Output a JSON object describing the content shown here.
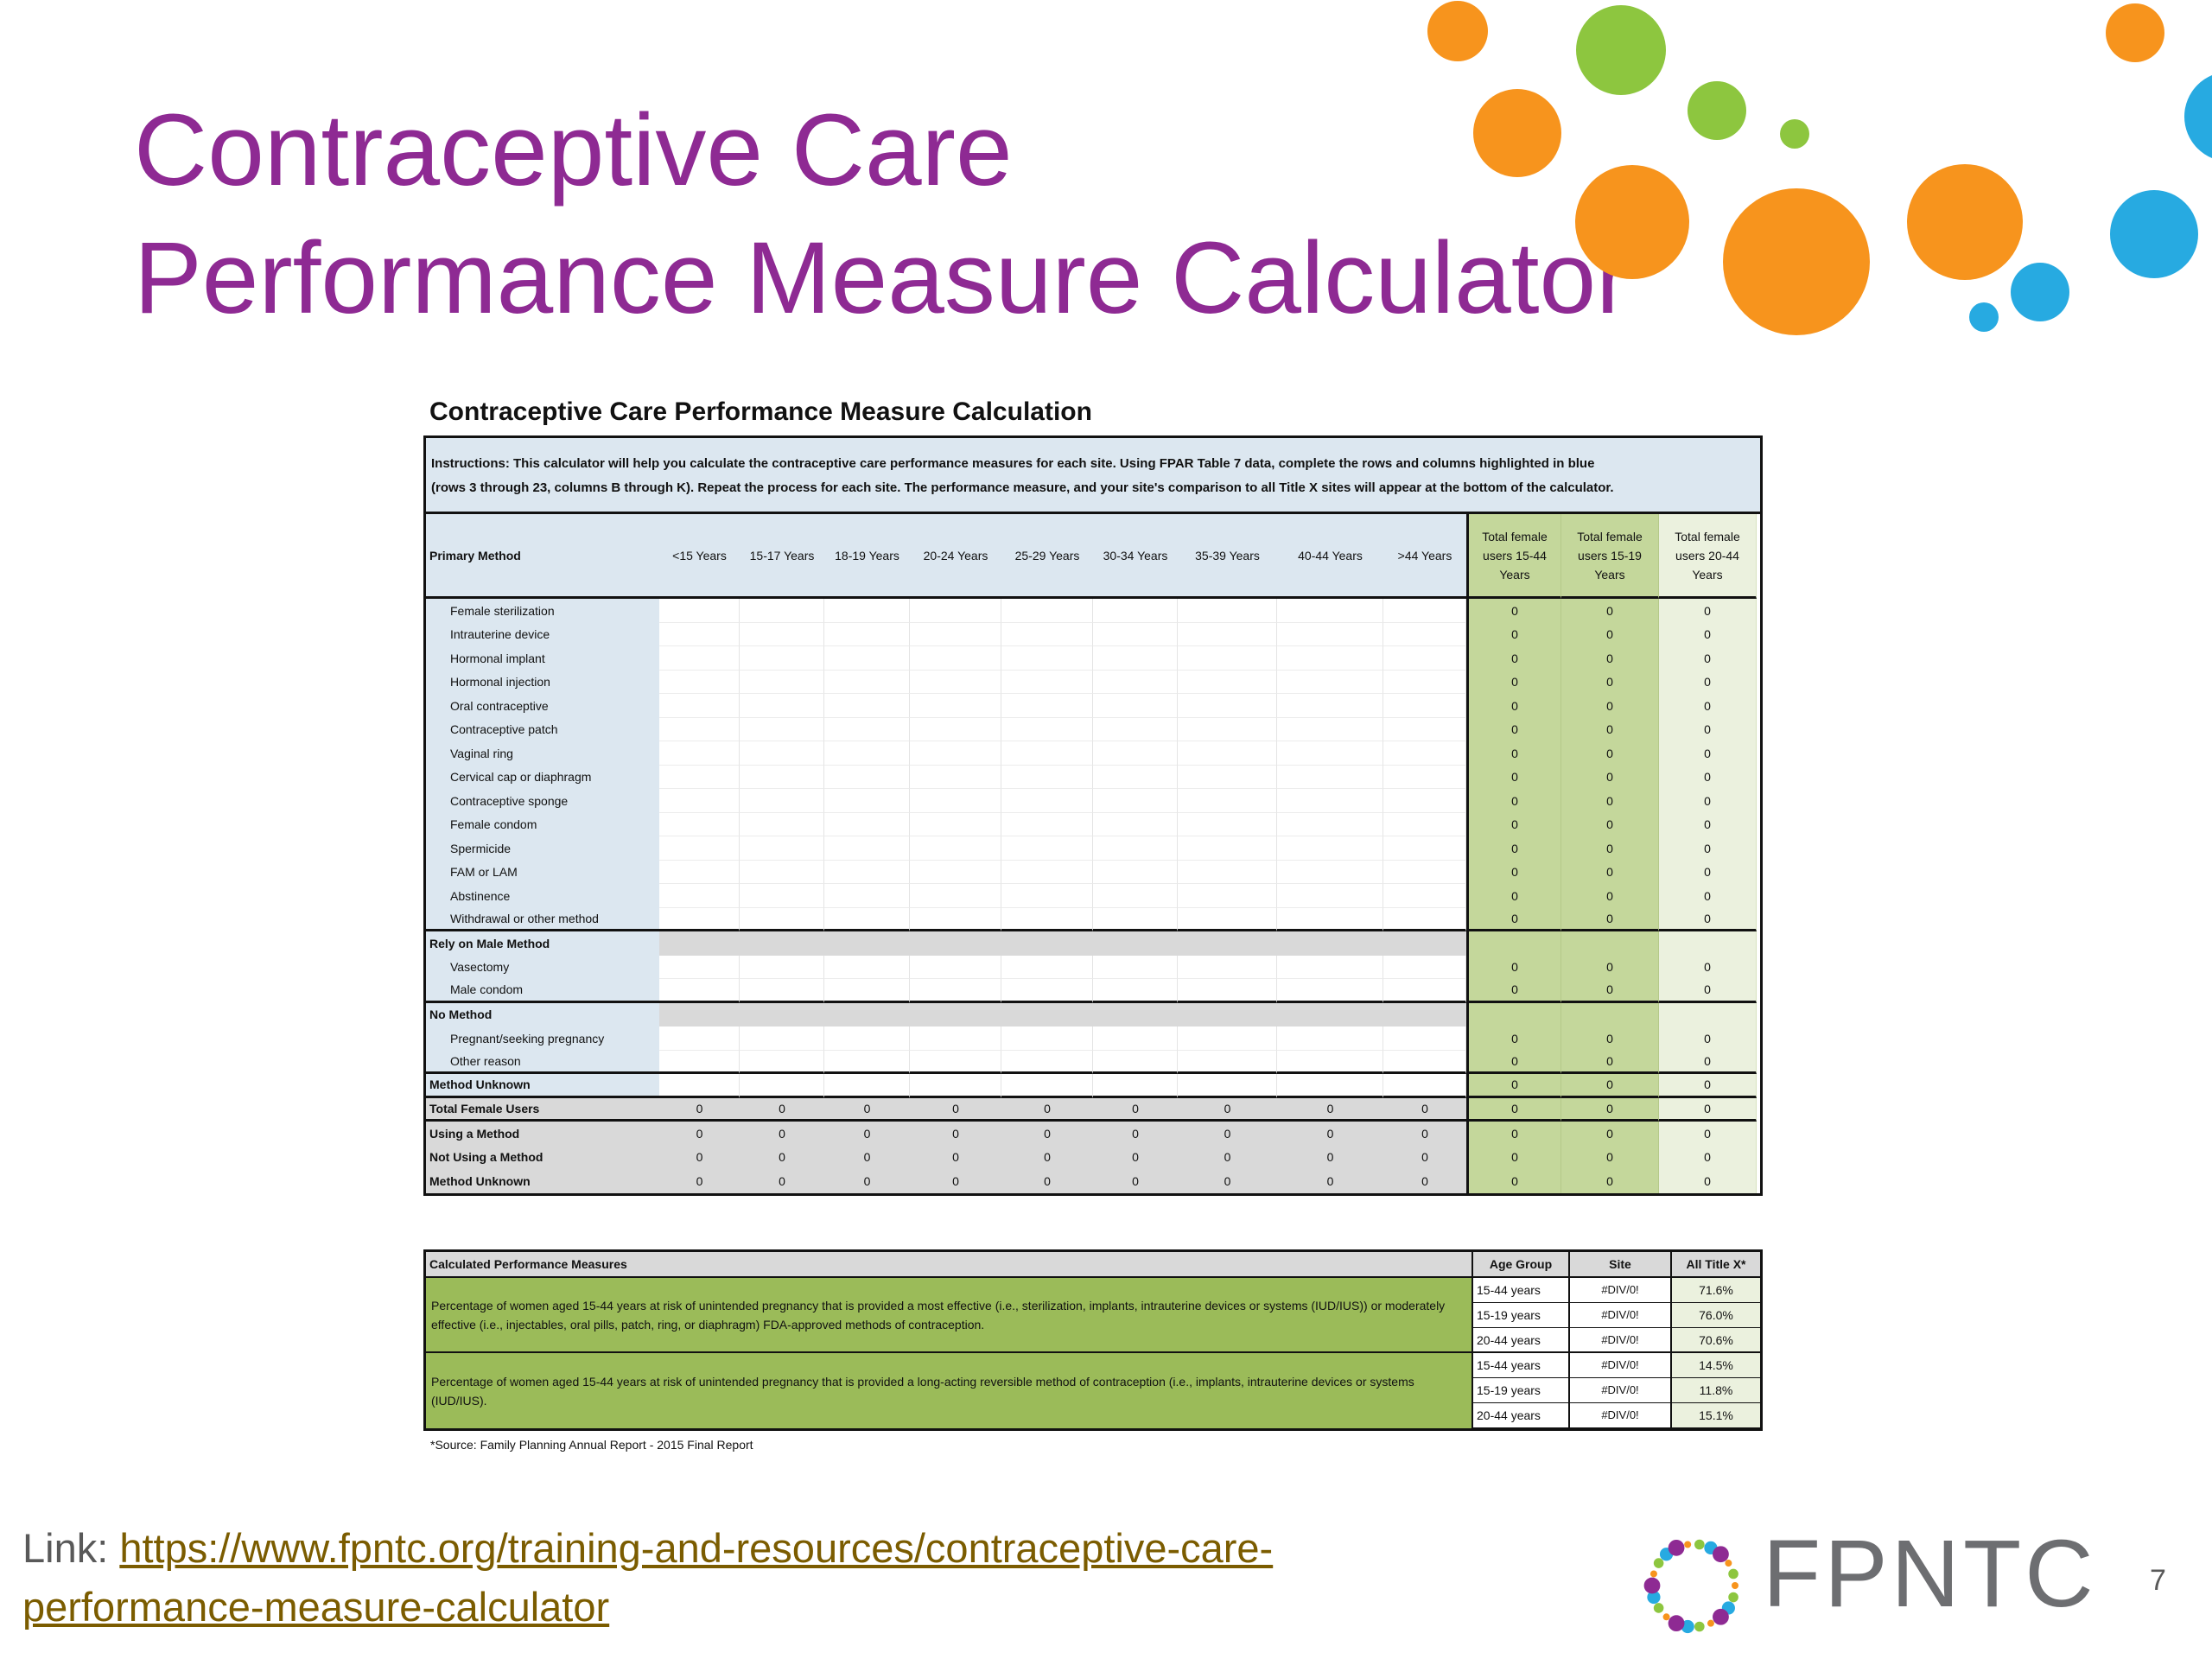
{
  "slide": {
    "title_line1": "Contraceptive Care",
    "title_line2": "Performance Measure Calculator",
    "page_number": "7",
    "link_label": "Link: ",
    "link_text_line1": "https://www.fpntc.org/training-and-resources/contraceptive-care-",
    "link_text_line2": "performance-measure-calculator",
    "logo_text": "FPNTC"
  },
  "sheet": {
    "title": "Contraceptive Care Performance Measure Calculation",
    "instructions_line1": "Instructions: This calculator will help you calculate the contraceptive care performance measures for each site. Using FPAR Table 7 data, complete the rows and columns highlighted in blue",
    "instructions_line2": "(rows 3 through 23, columns B through K). Repeat the process for each site. The performance measure, and your site's comparison to all Title X sites will appear at the bottom of the calculator.",
    "headers": [
      "Primary Method",
      "<15 Years",
      "15-17 Years",
      "18-19 Years",
      "20-24 Years",
      "25-29 Years",
      "30-34 Years",
      "35-39 Years",
      "40-44 Years",
      ">44 Years",
      "Total female users 15-44 Years",
      "Total female users 15-19 Years",
      "Total female users 20-44 Years"
    ],
    "primary_methods": [
      "Female sterilization",
      "Intrauterine device",
      "Hormonal implant",
      "Hormonal injection",
      "Oral contraceptive",
      "Contraceptive patch",
      "Vaginal ring",
      "Cervical cap or diaphragm",
      "Contraceptive sponge",
      "Female condom",
      "Spermicide",
      "FAM or LAM",
      "Abstinence",
      "Withdrawal or other method"
    ],
    "male_header": "Rely on Male Method",
    "male_methods": [
      "Vasectomy",
      "Male condom"
    ],
    "no_method_header": "No Method",
    "no_methods": [
      "Pregnant/seeking pregnancy",
      "Other reason"
    ],
    "method_unknown": "Method Unknown",
    "summary_rows": [
      "Total Female Users",
      "Using a Method",
      "Not Using a Method",
      "Method Unknown"
    ],
    "zero": "0"
  },
  "measures": {
    "header": "Calculated Performance Measures",
    "col_age": "Age Group",
    "col_site": "Site",
    "col_all": "All Title X*",
    "measure1": "Percentage of women aged 15-44 years at risk of unintended pregnancy that is provided a most effective (i.e., sterilization, implants, intrauterine devices or systems (IUD/IUS)) or moderately effective (i.e., injectables, oral pills, patch, ring, or diaphragm) FDA-approved methods of contraception.",
    "measure2": "Percentage of women aged 15-44 years at risk of unintended pregnancy that is provided a long-acting reversible method of contraception (i.e., implants, intrauterine devices or systems (IUD/IUS).",
    "rows": [
      {
        "age": "15-44 years",
        "site": "#DIV/0!",
        "all": "71.6%"
      },
      {
        "age": "15-19 years",
        "site": "#DIV/0!",
        "all": "76.0%"
      },
      {
        "age": "20-44 years",
        "site": "#DIV/0!",
        "all": "70.6%"
      },
      {
        "age": "15-44 years",
        "site": "#DIV/0!",
        "all": "14.5%"
      },
      {
        "age": "15-19 years",
        "site": "#DIV/0!",
        "all": "11.8%"
      },
      {
        "age": "20-44 years",
        "site": "#DIV/0!",
        "all": "15.1%"
      }
    ],
    "source": "*Source: Family Planning Annual Report - 2015 Final Report"
  },
  "colors": {
    "title_purple": "#8e2a93",
    "dot_orange": "#f7941d",
    "dot_green": "#8dc63f",
    "dot_blue": "#27aae1",
    "input_blue": "#dce7f0",
    "total_green": "#c4d79b",
    "measure_green": "#9bbb59"
  },
  "decorations": {
    "dots_icon": "decorative-dots-icon",
    "logo_icon": "fpntc-ring-logo-icon"
  }
}
